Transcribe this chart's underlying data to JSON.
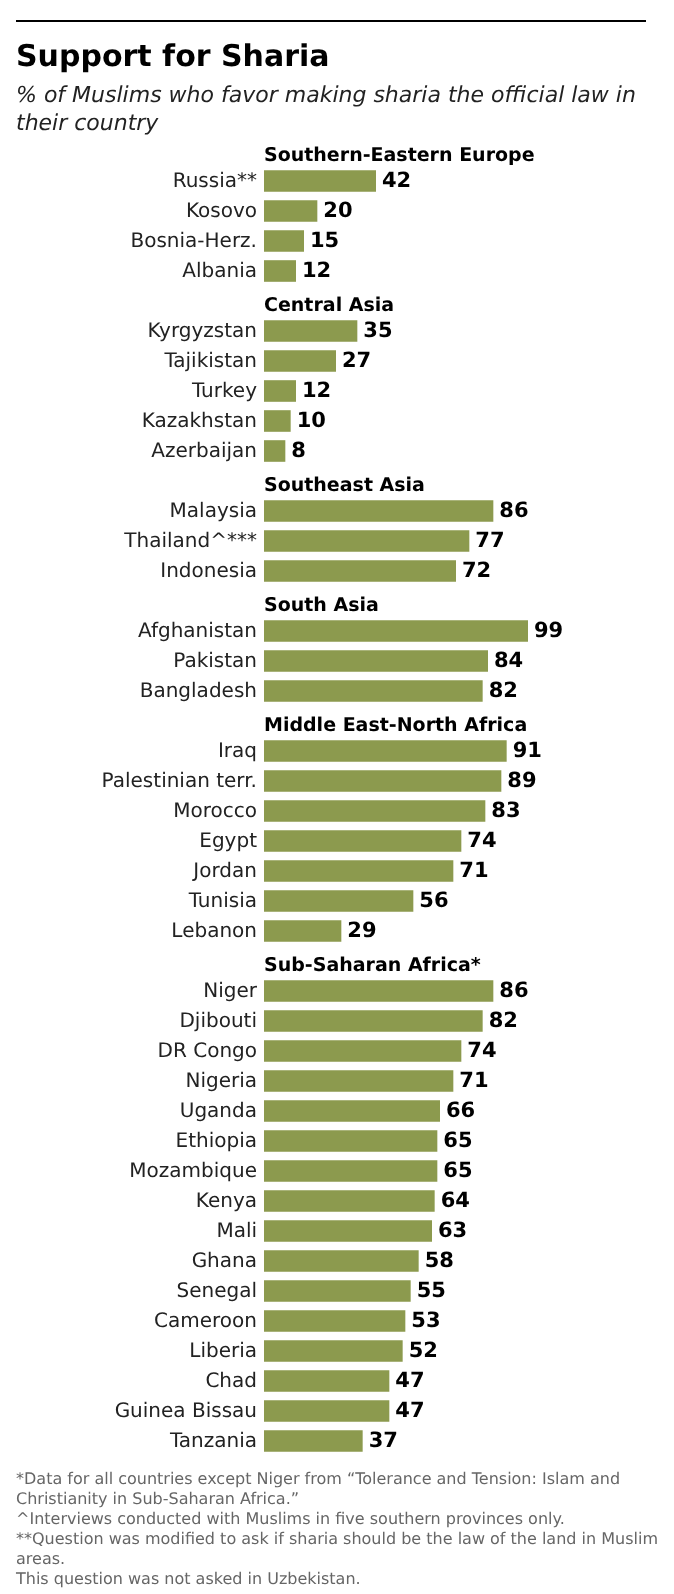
{
  "chart_data": [
    {
      "type": "bar",
      "orientation": "horizontal",
      "data_labels": true,
      "title": "Support for Sharia",
      "subtitle": "% of Muslims who favor making sharia the official law in their country",
      "annotations": [
        "Southern-Eastern Europe"
      ],
      "categories": [
        "Russia**",
        "Kosovo",
        "Bosnia-Herz.",
        "Albania"
      ],
      "values": [
        42,
        20,
        15,
        12
      ],
      "color": "#8c9a4e"
    },
    {
      "type": "bar",
      "orientation": "horizontal",
      "data_labels": true,
      "title": "Central Asia",
      "categories": [
        "Kyrgyzstan",
        "Tajikistan",
        "Turkey",
        "Kazakhstan",
        "Azerbaijan"
      ],
      "values": [
        35,
        27,
        12,
        10,
        8
      ],
      "color": "#8c9a4e"
    },
    {
      "type": "bar",
      "orientation": "horizontal",
      "data_labels": true,
      "title": "Southeast Asia",
      "categories": [
        "Malaysia",
        "Thailand^***",
        "Indonesia"
      ],
      "values": [
        86,
        77,
        72
      ],
      "color": "#8c9a4e"
    },
    {
      "type": "bar",
      "orientation": "horizontal",
      "data_labels": true,
      "title": "South Asia",
      "categories": [
        "Afghanistan",
        "Pakistan",
        "Bangladesh"
      ],
      "values": [
        99,
        84,
        82
      ],
      "color": "#8c9a4e"
    },
    {
      "type": "bar",
      "orientation": "horizontal",
      "data_labels": true,
      "title": "Middle East-North Africa",
      "categories": [
        "Iraq",
        "Palestinian terr.",
        "Morocco",
        "Egypt",
        "Jordan",
        "Tunisia",
        "Lebanon"
      ],
      "values": [
        91,
        89,
        83,
        74,
        71,
        56,
        29
      ],
      "color": "#8c9a4e"
    },
    {
      "type": "bar",
      "orientation": "horizontal",
      "data_labels": true,
      "title": "Sub-Saharan Africa*",
      "categories": [
        "Niger",
        "Djibouti",
        "DR Congo",
        "Nigeria",
        "Uganda",
        "Ethiopia",
        "Mozambique",
        "Kenya",
        "Mali",
        "Ghana",
        "Senegal",
        "Cameroon",
        "Liberia",
        "Chad",
        "Guinea Bissau",
        "Tanzania"
      ],
      "values": [
        86,
        82,
        74,
        71,
        66,
        65,
        65,
        64,
        63,
        58,
        55,
        53,
        52,
        47,
        47,
        37
      ],
      "color": "#8c9a4e",
      "annotations": [
        "*Data for all countries except Niger from “Tolerance and Tension: Islam and Christianity in Sub-Saharan Africa.”",
        "^Interviews conducted with Muslims in five southern provinces only.",
        "**Question was modified to ask if sharia should be the law of the land in Muslim areas.",
        "This question was not asked in Uzbekistan."
      ]
    }
  ]
}
